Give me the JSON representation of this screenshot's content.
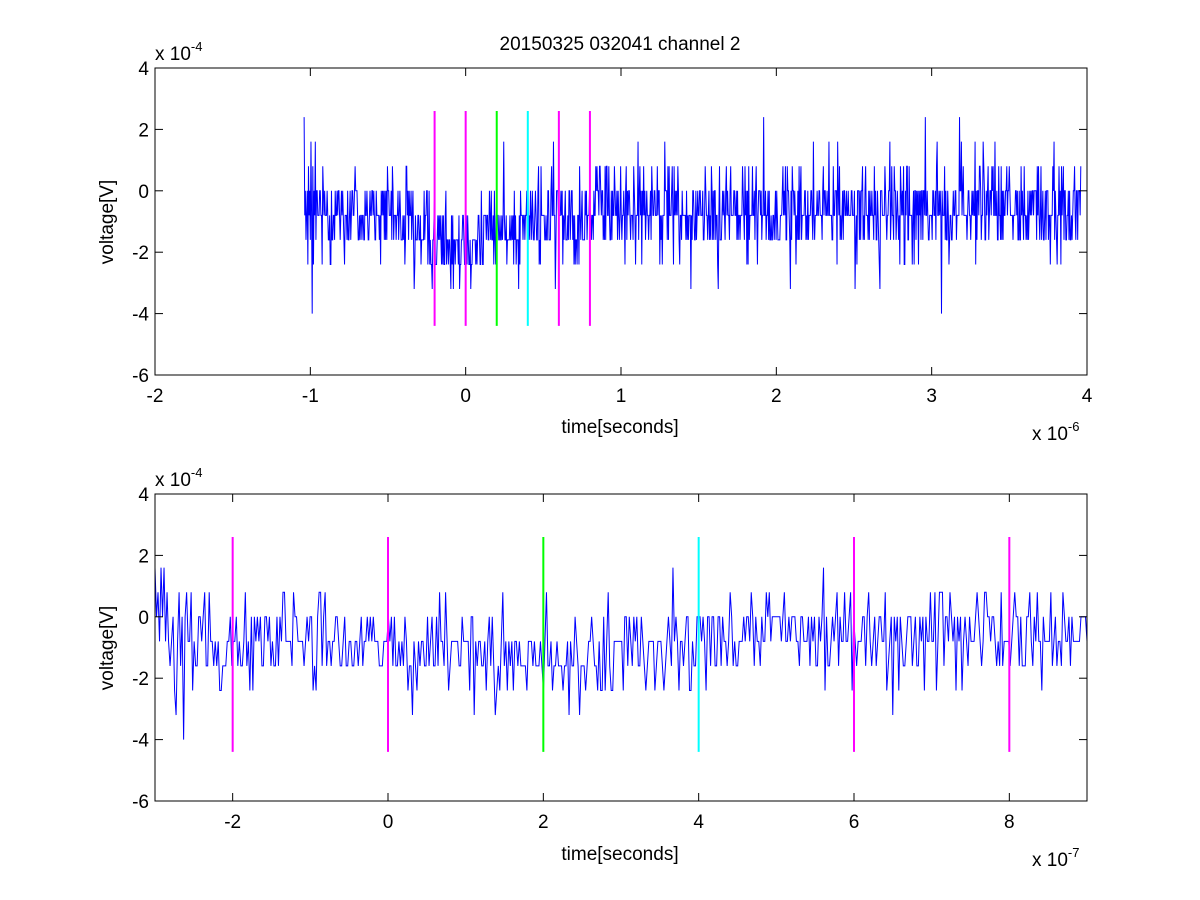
{
  "figure_title": "20150325 032041 channel 2",
  "colors": {
    "trace": "#0000ff",
    "magenta": "#ff00ff",
    "green": "#00ff00",
    "cyan": "#00ffff",
    "axes": "#000000"
  },
  "chart_data": [
    {
      "type": "line",
      "title": "20150325 032041 channel 2",
      "xlabel": "time[seconds]",
      "ylabel": "voltage[V]",
      "x_multiplier_label": "x 10",
      "x_multiplier_exponent": "-6",
      "y_multiplier_label": "x 10",
      "y_multiplier_exponent": "-4",
      "xlim": [
        -2,
        4
      ],
      "ylim": [
        -6,
        4
      ],
      "xticks": [
        "-2",
        "-1",
        "0",
        "1",
        "2",
        "3",
        "4"
      ],
      "yticks": [
        "-6",
        "-4",
        "-2",
        "0",
        "2",
        "4"
      ],
      "series": [
        {
          "color": "#0000ff",
          "x_start": -1.04,
          "x_end": 3.96,
          "y_quantum": 0.8,
          "y_range": [
            -4.0,
            2.4
          ],
          "sample_values_excerpt": [
            2.4,
            -0.8,
            0,
            -1.6,
            -0.8,
            0,
            -2.4,
            0.8,
            -0.8,
            0,
            -1.6,
            1.6,
            -0.8,
            -4.0,
            0.8,
            -2.4,
            0,
            -0.8,
            1.6,
            -1.6
          ]
        }
      ],
      "markers": [
        {
          "x": -0.2,
          "color": "magenta",
          "ymin": -4.4,
          "ymax": 2.6
        },
        {
          "x": 0.0,
          "color": "magenta",
          "ymin": -4.4,
          "ymax": 2.6
        },
        {
          "x": 0.2,
          "color": "green",
          "ymin": -4.4,
          "ymax": 2.6
        },
        {
          "x": 0.4,
          "color": "cyan",
          "ymin": -4.4,
          "ymax": 2.6
        },
        {
          "x": 0.6,
          "color": "magenta",
          "ymin": -4.4,
          "ymax": 2.6
        },
        {
          "x": 0.8,
          "color": "magenta",
          "ymin": -4.4,
          "ymax": 2.6
        }
      ],
      "grid": false
    },
    {
      "type": "line",
      "title": "",
      "xlabel": "time[seconds]",
      "ylabel": "voltage[V]",
      "x_multiplier_label": "x 10",
      "x_multiplier_exponent": "-7",
      "y_multiplier_label": "x 10",
      "y_multiplier_exponent": "-4",
      "xlim": [
        -3,
        9
      ],
      "ylim": [
        -6,
        4
      ],
      "xticks": [
        "-2",
        "0",
        "2",
        "4",
        "6",
        "8"
      ],
      "yticks": [
        "-6",
        "-4",
        "-2",
        "0",
        "2",
        "4"
      ],
      "series": [
        {
          "color": "#0000ff",
          "x_start": -3.0,
          "x_end": 9.0,
          "y_quantum": 0.8,
          "y_range": [
            -4.0,
            2.4
          ],
          "sample_values_excerpt": [
            1.6,
            0,
            0.8,
            -0.8,
            1.6,
            0,
            1.6,
            -0.8,
            0.8,
            -0.8,
            -1.6,
            -0.8,
            0,
            -2.4,
            -3.2,
            -0.8,
            0.8,
            -1.6,
            0,
            -4.0
          ]
        }
      ],
      "markers": [
        {
          "x": -2,
          "color": "magenta",
          "ymin": -4.4,
          "ymax": 2.6
        },
        {
          "x": 0,
          "color": "magenta",
          "ymin": -4.4,
          "ymax": 2.6
        },
        {
          "x": 2,
          "color": "green",
          "ymin": -4.4,
          "ymax": 2.6
        },
        {
          "x": 4,
          "color": "cyan",
          "ymin": -4.4,
          "ymax": 2.6
        },
        {
          "x": 6,
          "color": "magenta",
          "ymin": -4.4,
          "ymax": 2.6
        },
        {
          "x": 8,
          "color": "magenta",
          "ymin": -4.4,
          "ymax": 2.6
        }
      ],
      "grid": false
    }
  ]
}
